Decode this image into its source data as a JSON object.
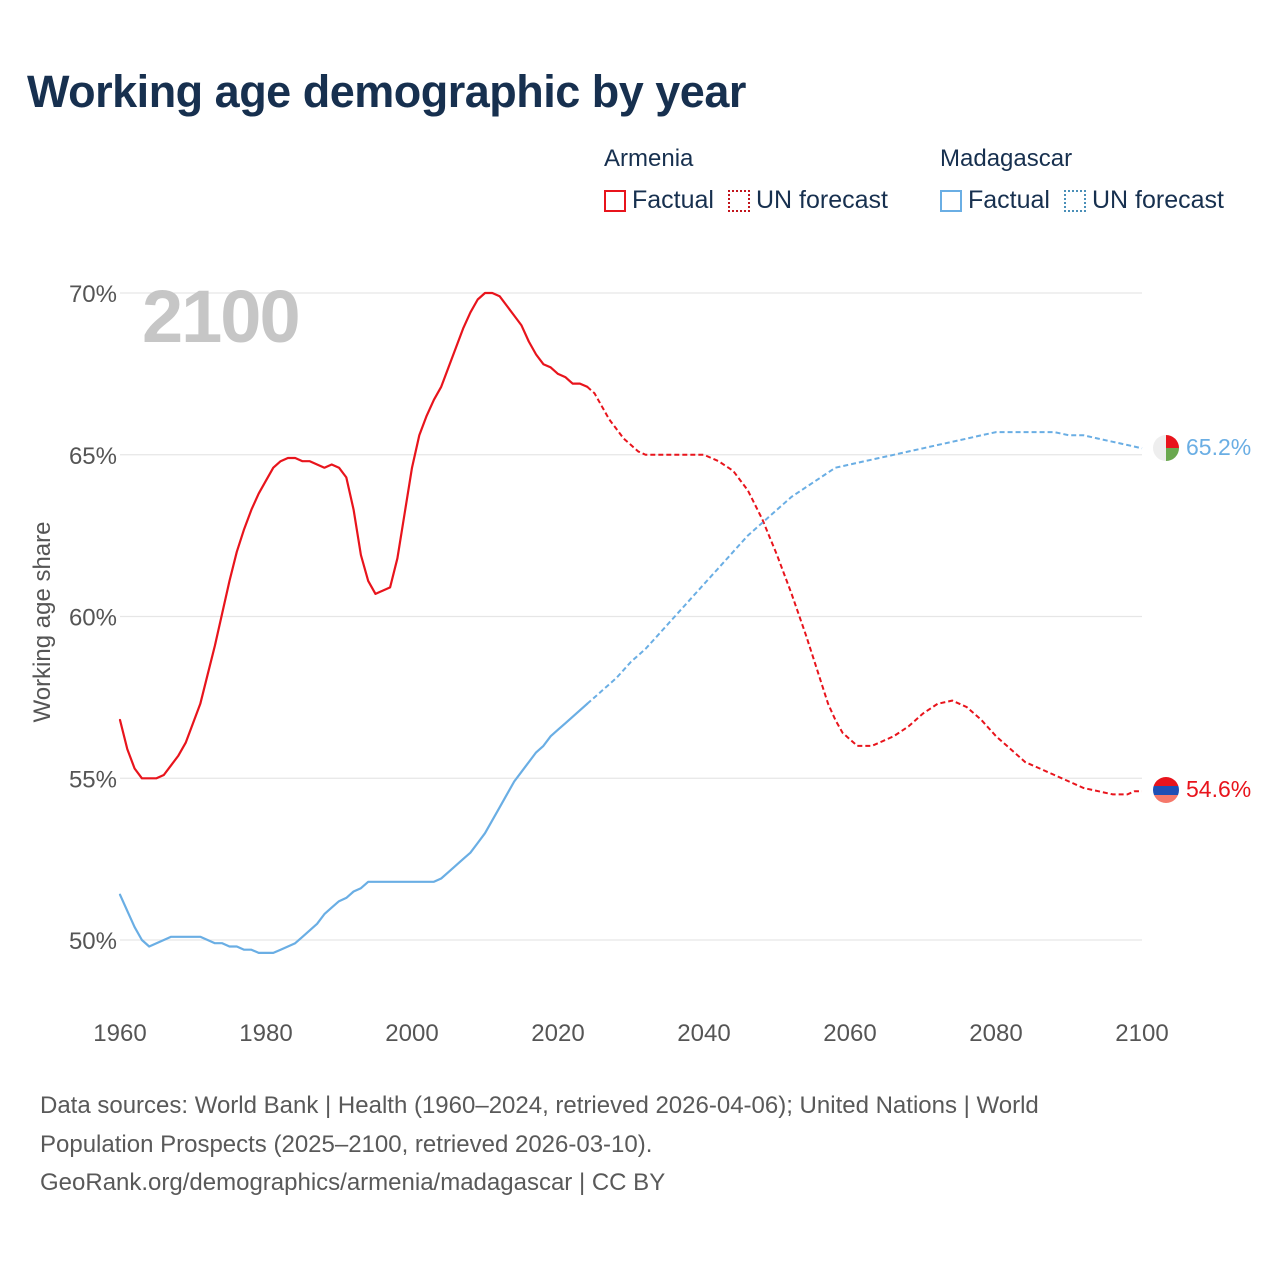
{
  "title": "Working age demographic by year",
  "legend": {
    "armenia": {
      "name": "Armenia",
      "factual": "Factual",
      "forecast": "UN forecast"
    },
    "madagascar": {
      "name": "Madagascar",
      "factual": "Factual",
      "forecast": "UN forecast"
    }
  },
  "colors": {
    "armenia": "#e8141c",
    "madagascar": "#6aaee4",
    "grid": "#e6e6e6",
    "axis_text": "#555555",
    "year_label": "#c6c6c6"
  },
  "source": {
    "line1": "Data sources: World Bank | Health (1960–2024, retrieved 2026-04-06); United Nations | World",
    "line2": "Population Prospects (2025–2100, retrieved 2026-03-10).",
    "line3": "GeoRank.org/demographics/armenia/madagascar | CC BY"
  },
  "chart_data": {
    "type": "line",
    "title": "Working age demographic by year",
    "year_label": "2100",
    "ylabel": "Working age share",
    "xlabel": "",
    "xlim": [
      1960,
      2100
    ],
    "ylim": [
      48.5,
      70.3
    ],
    "x_ticks": [
      1960,
      1980,
      2000,
      2020,
      2040,
      2060,
      2080,
      2100
    ],
    "x_tick_labels": [
      "1960",
      "1980",
      "2000",
      "2020",
      "2040",
      "2060",
      "2080",
      "2100"
    ],
    "y_ticks": [
      50,
      55,
      60,
      65,
      70
    ],
    "y_tick_labels": [
      "50%",
      "55%",
      "60%",
      "65%",
      "70%"
    ],
    "series": [
      {
        "name": "Armenia",
        "color": "#e8141c",
        "end_label": "54.6%",
        "factual": [
          [
            1960,
            56.8
          ],
          [
            1961,
            55.9
          ],
          [
            1962,
            55.3
          ],
          [
            1963,
            55.0
          ],
          [
            1964,
            55.0
          ],
          [
            1965,
            55.0
          ],
          [
            1966,
            55.1
          ],
          [
            1967,
            55.4
          ],
          [
            1968,
            55.7
          ],
          [
            1969,
            56.1
          ],
          [
            1970,
            56.7
          ],
          [
            1971,
            57.3
          ],
          [
            1972,
            58.2
          ],
          [
            1973,
            59.1
          ],
          [
            1974,
            60.1
          ],
          [
            1975,
            61.1
          ],
          [
            1976,
            62.0
          ],
          [
            1977,
            62.7
          ],
          [
            1978,
            63.3
          ],
          [
            1979,
            63.8
          ],
          [
            1980,
            64.2
          ],
          [
            1981,
            64.6
          ],
          [
            1982,
            64.8
          ],
          [
            1983,
            64.9
          ],
          [
            1984,
            64.9
          ],
          [
            1985,
            64.8
          ],
          [
            1986,
            64.8
          ],
          [
            1987,
            64.7
          ],
          [
            1988,
            64.6
          ],
          [
            1989,
            64.7
          ],
          [
            1990,
            64.6
          ],
          [
            1991,
            64.3
          ],
          [
            1992,
            63.3
          ],
          [
            1993,
            61.9
          ],
          [
            1994,
            61.1
          ],
          [
            1995,
            60.7
          ],
          [
            1996,
            60.8
          ],
          [
            1997,
            60.9
          ],
          [
            1998,
            61.8
          ],
          [
            1999,
            63.2
          ],
          [
            2000,
            64.6
          ],
          [
            2001,
            65.6
          ],
          [
            2002,
            66.2
          ],
          [
            2003,
            66.7
          ],
          [
            2004,
            67.1
          ],
          [
            2005,
            67.7
          ],
          [
            2006,
            68.3
          ],
          [
            2007,
            68.9
          ],
          [
            2008,
            69.4
          ],
          [
            2009,
            69.8
          ],
          [
            2010,
            70.0
          ],
          [
            2011,
            70.0
          ],
          [
            2012,
            69.9
          ],
          [
            2013,
            69.6
          ],
          [
            2014,
            69.3
          ],
          [
            2015,
            69.0
          ],
          [
            2016,
            68.5
          ],
          [
            2017,
            68.1
          ],
          [
            2018,
            67.8
          ],
          [
            2019,
            67.7
          ],
          [
            2020,
            67.5
          ],
          [
            2021,
            67.4
          ],
          [
            2022,
            67.2
          ],
          [
            2023,
            67.2
          ],
          [
            2024,
            67.1
          ]
        ],
        "forecast": [
          [
            2024,
            67.1
          ],
          [
            2025,
            66.9
          ],
          [
            2026,
            66.5
          ],
          [
            2027,
            66.1
          ],
          [
            2028,
            65.8
          ],
          [
            2029,
            65.5
          ],
          [
            2030,
            65.3
          ],
          [
            2031,
            65.1
          ],
          [
            2032,
            65.0
          ],
          [
            2034,
            65.0
          ],
          [
            2036,
            65.0
          ],
          [
            2038,
            65.0
          ],
          [
            2040,
            65.0
          ],
          [
            2042,
            64.8
          ],
          [
            2044,
            64.5
          ],
          [
            2046,
            63.9
          ],
          [
            2048,
            63.0
          ],
          [
            2050,
            61.9
          ],
          [
            2052,
            60.7
          ],
          [
            2054,
            59.4
          ],
          [
            2056,
            58.0
          ],
          [
            2057,
            57.3
          ],
          [
            2058,
            56.8
          ],
          [
            2059,
            56.4
          ],
          [
            2060,
            56.2
          ],
          [
            2061,
            56.0
          ],
          [
            2062,
            56.0
          ],
          [
            2063,
            56.0
          ],
          [
            2064,
            56.1
          ],
          [
            2066,
            56.3
          ],
          [
            2068,
            56.6
          ],
          [
            2070,
            57.0
          ],
          [
            2072,
            57.3
          ],
          [
            2074,
            57.4
          ],
          [
            2076,
            57.2
          ],
          [
            2078,
            56.8
          ],
          [
            2080,
            56.3
          ],
          [
            2082,
            55.9
          ],
          [
            2084,
            55.5
          ],
          [
            2086,
            55.3
          ],
          [
            2088,
            55.1
          ],
          [
            2090,
            54.9
          ],
          [
            2092,
            54.7
          ],
          [
            2094,
            54.6
          ],
          [
            2096,
            54.5
          ],
          [
            2098,
            54.5
          ],
          [
            2099,
            54.6
          ],
          [
            2100,
            54.6
          ]
        ]
      },
      {
        "name": "Madagascar",
        "color": "#6aaee4",
        "end_label": "65.2%",
        "factual": [
          [
            1960,
            51.4
          ],
          [
            1961,
            50.9
          ],
          [
            1962,
            50.4
          ],
          [
            1963,
            50.0
          ],
          [
            1964,
            49.8
          ],
          [
            1965,
            49.9
          ],
          [
            1966,
            50.0
          ],
          [
            1967,
            50.1
          ],
          [
            1968,
            50.1
          ],
          [
            1969,
            50.1
          ],
          [
            1970,
            50.1
          ],
          [
            1971,
            50.1
          ],
          [
            1972,
            50.0
          ],
          [
            1973,
            49.9
          ],
          [
            1974,
            49.9
          ],
          [
            1975,
            49.8
          ],
          [
            1976,
            49.8
          ],
          [
            1977,
            49.7
          ],
          [
            1978,
            49.7
          ],
          [
            1979,
            49.6
          ],
          [
            1980,
            49.6
          ],
          [
            1981,
            49.6
          ],
          [
            1982,
            49.7
          ],
          [
            1983,
            49.8
          ],
          [
            1984,
            49.9
          ],
          [
            1985,
            50.1
          ],
          [
            1986,
            50.3
          ],
          [
            1987,
            50.5
          ],
          [
            1988,
            50.8
          ],
          [
            1989,
            51.0
          ],
          [
            1990,
            51.2
          ],
          [
            1991,
            51.3
          ],
          [
            1992,
            51.5
          ],
          [
            1993,
            51.6
          ],
          [
            1994,
            51.8
          ],
          [
            1995,
            51.8
          ],
          [
            1996,
            51.8
          ],
          [
            1997,
            51.8
          ],
          [
            1998,
            51.8
          ],
          [
            1999,
            51.8
          ],
          [
            2000,
            51.8
          ],
          [
            2001,
            51.8
          ],
          [
            2002,
            51.8
          ],
          [
            2003,
            51.8
          ],
          [
            2004,
            51.9
          ],
          [
            2005,
            52.1
          ],
          [
            2006,
            52.3
          ],
          [
            2007,
            52.5
          ],
          [
            2008,
            52.7
          ],
          [
            2009,
            53.0
          ],
          [
            2010,
            53.3
          ],
          [
            2011,
            53.7
          ],
          [
            2012,
            54.1
          ],
          [
            2013,
            54.5
          ],
          [
            2014,
            54.9
          ],
          [
            2015,
            55.2
          ],
          [
            2016,
            55.5
          ],
          [
            2017,
            55.8
          ],
          [
            2018,
            56.0
          ],
          [
            2019,
            56.3
          ],
          [
            2020,
            56.5
          ],
          [
            2021,
            56.7
          ],
          [
            2022,
            56.9
          ],
          [
            2023,
            57.1
          ],
          [
            2024,
            57.3
          ]
        ],
        "forecast": [
          [
            2024,
            57.3
          ],
          [
            2026,
            57.7
          ],
          [
            2028,
            58.1
          ],
          [
            2030,
            58.6
          ],
          [
            2032,
            59.0
          ],
          [
            2034,
            59.5
          ],
          [
            2036,
            60.0
          ],
          [
            2038,
            60.5
          ],
          [
            2040,
            61.0
          ],
          [
            2042,
            61.5
          ],
          [
            2044,
            62.0
          ],
          [
            2046,
            62.5
          ],
          [
            2048,
            62.9
          ],
          [
            2050,
            63.3
          ],
          [
            2052,
            63.7
          ],
          [
            2054,
            64.0
          ],
          [
            2056,
            64.3
          ],
          [
            2058,
            64.6
          ],
          [
            2060,
            64.7
          ],
          [
            2062,
            64.8
          ],
          [
            2064,
            64.9
          ],
          [
            2066,
            65.0
          ],
          [
            2068,
            65.1
          ],
          [
            2070,
            65.2
          ],
          [
            2072,
            65.3
          ],
          [
            2074,
            65.4
          ],
          [
            2076,
            65.5
          ],
          [
            2078,
            65.6
          ],
          [
            2080,
            65.7
          ],
          [
            2082,
            65.7
          ],
          [
            2084,
            65.7
          ],
          [
            2086,
            65.7
          ],
          [
            2088,
            65.7
          ],
          [
            2090,
            65.6
          ],
          [
            2092,
            65.6
          ],
          [
            2094,
            65.5
          ],
          [
            2096,
            65.4
          ],
          [
            2098,
            65.3
          ],
          [
            2100,
            65.2
          ]
        ]
      }
    ]
  }
}
